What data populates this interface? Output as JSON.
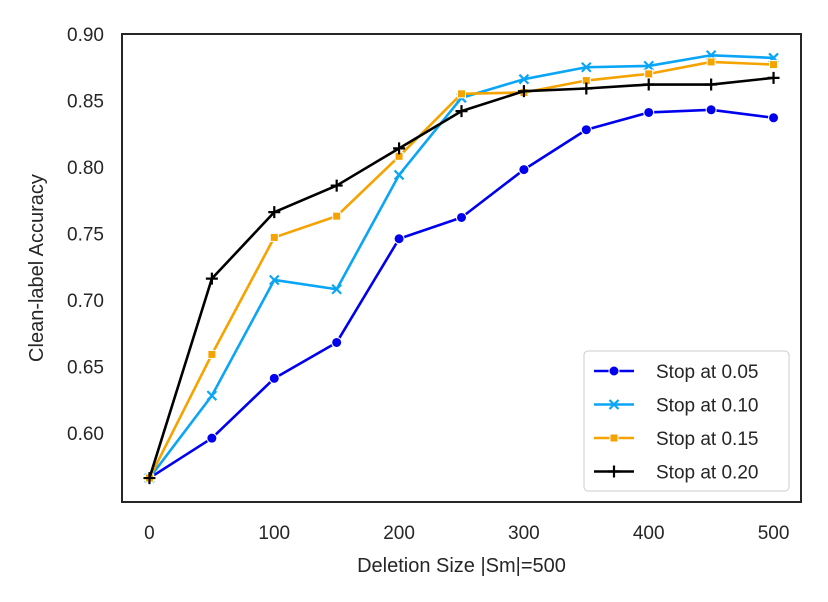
{
  "chart_data": {
    "type": "line",
    "title": "",
    "xlabel": "Deletion Size |Sm|=500",
    "ylabel": "Clean-label Accuracy",
    "xlim": [
      -22,
      522
    ],
    "ylim": [
      0.548,
      0.9
    ],
    "x_ticks": [
      0,
      100,
      200,
      300,
      400,
      500
    ],
    "y_ticks": [
      0.6,
      0.65,
      0.7,
      0.75,
      0.8,
      0.85,
      0.9
    ],
    "x_tick_labels": [
      "0",
      "100",
      "200",
      "300",
      "400",
      "500"
    ],
    "y_tick_labels": [
      "0.60",
      "0.65",
      "0.70",
      "0.75",
      "0.80",
      "0.85",
      "0.90"
    ],
    "grid": false,
    "legend_position": "bottom-right",
    "x": [
      0,
      50,
      100,
      150,
      200,
      250,
      300,
      350,
      400,
      450,
      500
    ],
    "series": [
      {
        "name": "Stop at 0.05",
        "color": "#0000ee",
        "marker": "circle",
        "values": [
          0.566,
          0.596,
          0.641,
          0.668,
          0.746,
          0.762,
          0.798,
          0.828,
          0.841,
          0.843,
          0.837
        ]
      },
      {
        "name": "Stop at 0.10",
        "color": "#0ba5f5",
        "marker": "x",
        "values": [
          0.566,
          0.628,
          0.715,
          0.708,
          0.794,
          0.852,
          0.866,
          0.875,
          0.876,
          0.884,
          0.882
        ]
      },
      {
        "name": "Stop at 0.15",
        "color": "#f5a300",
        "marker": "square",
        "values": [
          0.566,
          0.659,
          0.747,
          0.763,
          0.808,
          0.855,
          0.856,
          0.865,
          0.87,
          0.879,
          0.877
        ]
      },
      {
        "name": "Stop at 0.20",
        "color": "#000000",
        "marker": "plus",
        "values": [
          0.566,
          0.716,
          0.766,
          0.786,
          0.814,
          0.842,
          0.857,
          0.859,
          0.862,
          0.862,
          0.867
        ]
      }
    ]
  }
}
